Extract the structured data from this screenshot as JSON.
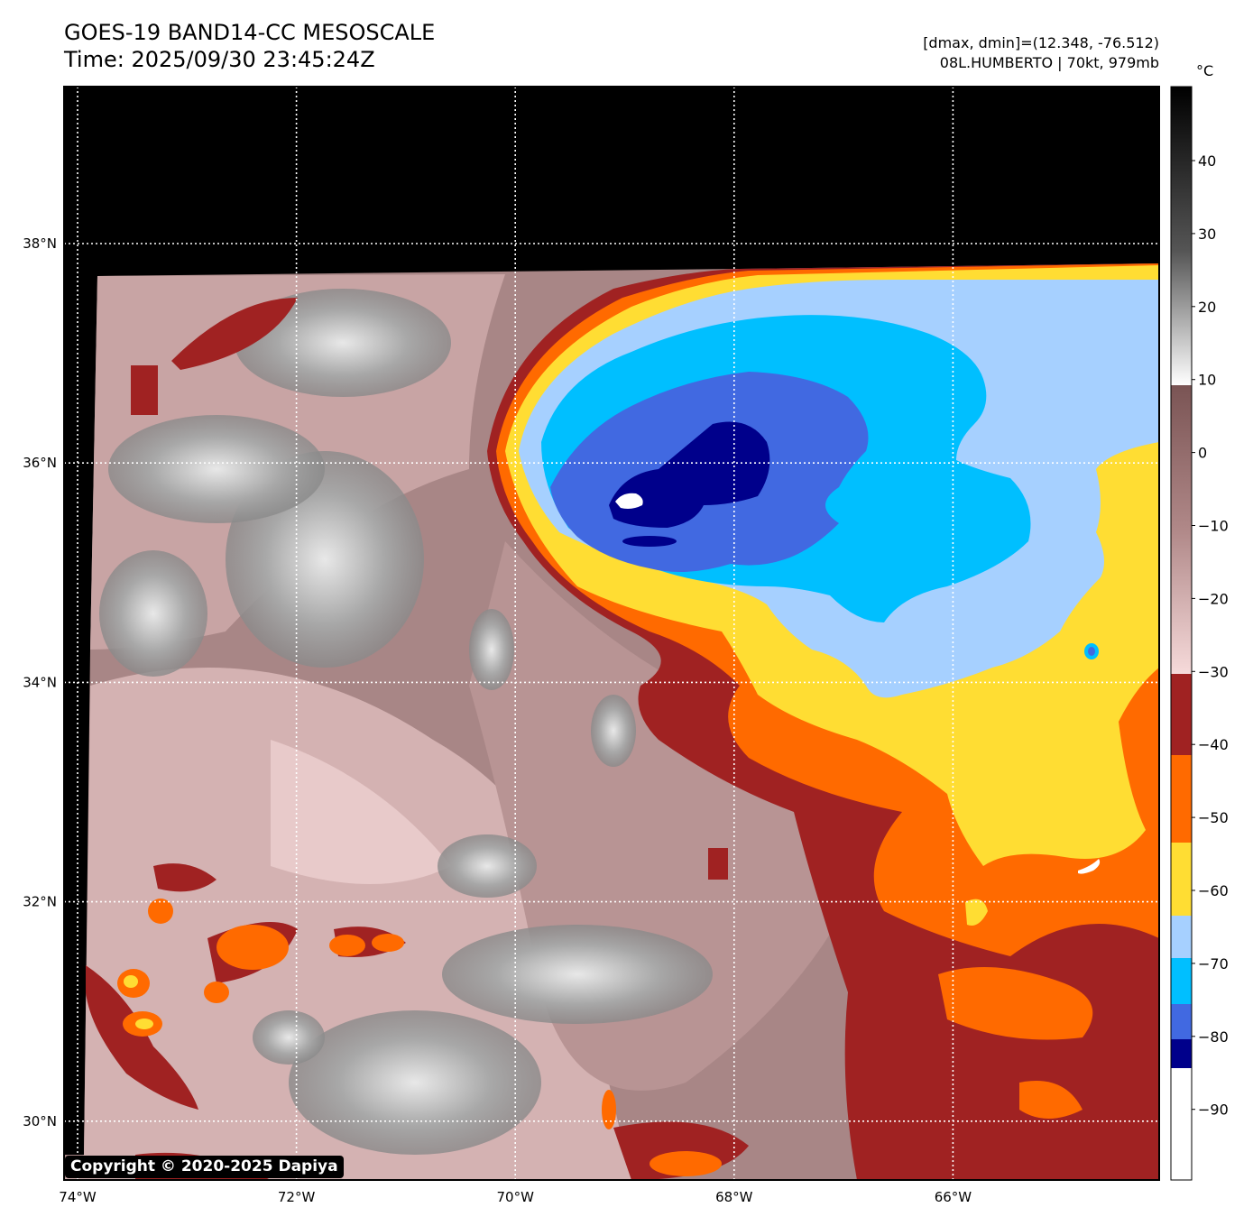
{
  "title": {
    "line1": "GOES-19 BAND14-CC MESOSCALE",
    "line2": "Time: 2025/09/30 23:45:24Z"
  },
  "info": {
    "range": "[dmax, dmin]=(12.348, -76.512)",
    "storm": "08L.HUMBERTO | 70kt, 979mb"
  },
  "map": {
    "longitudes": [
      {
        "value": -74,
        "label": "74°W"
      },
      {
        "value": -72,
        "label": "72°W"
      },
      {
        "value": -70,
        "label": "70°W"
      },
      {
        "value": -68,
        "label": "68°W"
      },
      {
        "value": -66,
        "label": "66°W"
      }
    ],
    "latitudes": [
      {
        "value": 38,
        "label": "38°N"
      },
      {
        "value": 36,
        "label": "36°N"
      },
      {
        "value": 34,
        "label": "34°N"
      },
      {
        "value": 32,
        "label": "32°N"
      },
      {
        "value": 30,
        "label": "30°N"
      }
    ]
  },
  "colorbar": {
    "unit": "°C",
    "ticks": [
      "40",
      "30",
      "20",
      "10",
      "0",
      "−10",
      "−20",
      "−30",
      "−40",
      "−50",
      "−60",
      "−70",
      "−80",
      "−90"
    ],
    "colors": {
      "black": "#000000",
      "gray": "#9a9a9a",
      "brown": "#8a6464",
      "pink": "#f2d4d4",
      "darkred": "#a02222",
      "orange": "#ff6a00",
      "yellow": "#ffdd33",
      "lightblue": "#a6d0ff",
      "cyan": "#00bfff",
      "blue": "#4169e1",
      "navy": "#00008b",
      "white": "#ffffff"
    }
  },
  "copyright": "Copyright © 2020-2025 Dapiya"
}
